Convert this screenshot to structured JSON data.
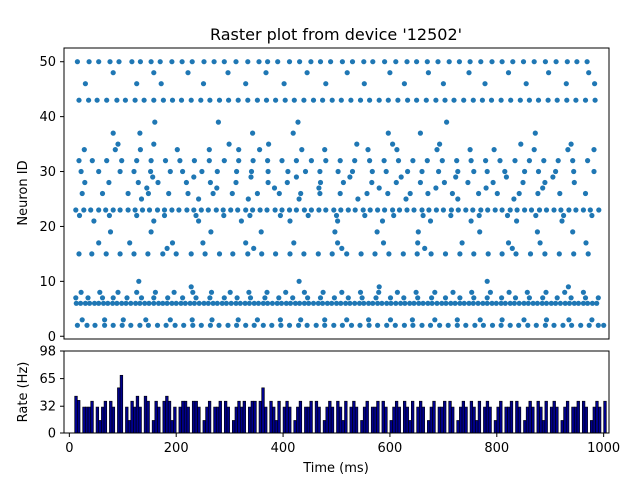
{
  "chart_data": [
    {
      "type": "scatter",
      "title": "Raster plot from device '12502'",
      "xlabel": "",
      "ylabel": "Neuron ID",
      "xlim": [
        -10,
        1010
      ],
      "ylim": [
        -0.5,
        52.5
      ],
      "yticks": [
        0,
        10,
        20,
        30,
        40,
        50
      ],
      "color": "#1f77b4",
      "neurons": [
        {
          "id": 50,
          "times": [
            15,
            37,
            55,
            76,
            93,
            117,
            133,
            153,
            170,
            192,
            211,
            230,
            252,
            271,
            290,
            312,
            334,
            355,
            371,
            390,
            412,
            431,
            452,
            470,
            489,
            511,
            530,
            551,
            568,
            590,
            611,
            632,
            650,
            670,
            690,
            711,
            730,
            750,
            770,
            791,
            810,
            830,
            850,
            870,
            891,
            911,
            932,
            950,
            969
          ]
        },
        {
          "id": 48,
          "times": [
            82,
            158,
            222,
            297,
            368,
            445,
            520,
            600,
            672,
            748,
            822,
            897,
            972
          ]
        },
        {
          "id": 46,
          "times": [
            30,
            126,
            172,
            251,
            330,
            402,
            480,
            552,
            627,
            700,
            778,
            855,
            930,
            983
          ]
        },
        {
          "id": 43,
          "times": [
            18,
            36,
            52,
            70,
            89,
            105,
            123,
            140,
            158,
            176,
            193,
            210,
            228,
            246,
            263,
            281,
            298,
            316,
            334,
            352,
            369,
            386,
            404,
            421,
            439,
            457,
            474,
            492,
            509,
            527,
            545,
            562,
            580,
            597,
            615,
            633,
            650,
            668,
            686,
            703,
            720,
            738,
            756,
            773,
            790,
            808,
            826,
            844,
            861,
            878,
            896,
            913,
            931,
            948,
            966,
            984
          ]
        },
        {
          "id": 39,
          "times": [
            160,
            279,
            428,
            706
          ]
        },
        {
          "id": 37,
          "times": [
            82,
            132,
            343,
            419,
            597,
            657,
            872
          ]
        },
        {
          "id": 35,
          "times": [
            91,
            158,
            299,
            373,
            538,
            605,
            693,
            845,
            939
          ]
        },
        {
          "id": 34,
          "times": [
            28,
            86,
            133,
            202,
            262,
            317,
            356,
            435,
            478,
            559,
            613,
            688,
            750,
            795,
            870,
            933,
            982
          ]
        },
        {
          "id": 32,
          "times": [
            18,
            43,
            70,
            98,
            126,
            153,
            180,
            207,
            234,
            262,
            290,
            317,
            344,
            371,
            398,
            425,
            453,
            480,
            507,
            534,
            562,
            589,
            616,
            643,
            670,
            698,
            725,
            752,
            779,
            806,
            834,
            861,
            888,
            915,
            942,
            970
          ]
        },
        {
          "id": 30,
          "times": [
            22,
            55,
            95,
            121,
            152,
            189,
            212,
            248,
            277,
            313,
            341,
            372,
            409,
            442,
            469,
            503,
            530,
            567,
            593,
            633,
            660,
            691,
            727,
            757,
            782,
            815,
            852,
            878,
            910,
            944,
            982
          ]
        },
        {
          "id": 29,
          "times": [
            156,
            233,
            340,
            425,
            525,
            621,
            723,
            818,
            905
          ]
        },
        {
          "id": 28,
          "times": [
            29,
            74,
            129,
            166,
            219,
            264,
            312,
            372,
            408,
            470,
            513,
            566,
            612,
            657,
            702,
            746,
            793,
            849,
            890,
            945
          ]
        },
        {
          "id": 27,
          "times": [
            145,
            276,
            384,
            467,
            580,
            686,
            780,
            886
          ]
        },
        {
          "id": 26,
          "times": [
            24,
            62,
            110,
            148,
            186,
            222,
            269,
            305,
            352,
            393,
            433,
            469,
            507,
            557,
            596,
            638,
            671,
            717,
            766,
            801,
            842,
            877,
            918,
            966
          ]
        },
        {
          "id": 25,
          "times": [
            135,
            242,
            335,
            430,
            540,
            630,
            727,
            832
          ]
        },
        {
          "id": 23,
          "times": [
            12,
            27,
            40,
            55,
            68,
            82,
            95,
            110,
            123,
            137,
            150,
            165,
            178,
            192,
            205,
            220,
            233,
            247,
            260,
            275,
            288,
            302,
            315,
            330,
            343,
            357,
            370,
            385,
            398,
            412,
            425,
            440,
            453,
            467,
            480,
            495,
            508,
            522,
            535,
            550,
            563,
            577,
            590,
            605,
            618,
            632,
            645,
            660,
            673,
            687,
            700,
            715,
            728,
            742,
            755,
            770,
            783,
            797,
            810,
            825,
            838,
            852,
            865,
            880,
            893,
            907,
            920,
            935,
            948,
            962,
            975,
            991
          ]
        },
        {
          "id": 22,
          "times": [
            19,
            75,
            126,
            178,
            237,
            289,
            338,
            395,
            447,
            500,
            553,
            607,
            662,
            714,
            767,
            820,
            873,
            925,
            978
          ]
        },
        {
          "id": 21,
          "times": [
            46,
            158,
            242,
            322,
            413,
            502,
            586,
            676,
            752,
            837,
            922
          ]
        },
        {
          "id": 19,
          "times": [
            77,
            153,
            265,
            359,
            497,
            576,
            653,
            768,
            876,
            942
          ]
        },
        {
          "id": 17,
          "times": [
            55,
            113,
            193,
            250,
            330,
            420,
            502,
            588,
            652,
            735,
            822,
            881,
            967
          ]
        },
        {
          "id": 16,
          "times": [
            183,
            345,
            510,
            665,
            829
          ]
        },
        {
          "id": 15,
          "times": [
            18,
            42,
            69,
            95,
            121,
            147,
            175,
            200,
            228,
            254,
            281,
            306,
            334,
            360,
            386,
            413,
            439,
            466,
            492,
            519,
            546,
            572,
            598,
            625,
            651,
            677,
            704,
            731,
            757,
            784,
            810,
            836,
            863,
            890,
            917,
            944,
            971
          ]
        },
        {
          "id": 10,
          "times": [
            130,
            430,
            782
          ]
        },
        {
          "id": 9,
          "times": [
            228,
            580,
            934
          ]
        },
        {
          "id": 8,
          "times": [
            22,
            57,
            91,
            126,
            161,
            196,
            231,
            266,
            301,
            336,
            370,
            405,
            440,
            475,
            510,
            545,
            579,
            614,
            649,
            684,
            718,
            753,
            788,
            823,
            857,
            892,
            927,
            962
          ]
        },
        {
          "id": 7,
          "times": [
            12,
            35,
            62,
            82,
            108,
            135,
            158,
            184,
            212,
            237,
            263,
            290,
            314,
            339,
            366,
            392,
            418,
            446,
            470,
            496,
            522,
            548,
            574,
            601,
            626,
            652,
            678,
            704,
            731,
            757,
            782,
            809,
            835,
            861,
            886,
            913,
            939,
            966,
            990
          ]
        },
        {
          "id": 6,
          "times": [
            13,
            21,
            30,
            38,
            47,
            55,
            64,
            72,
            81,
            89,
            98,
            106,
            115,
            124,
            132,
            141,
            149,
            158,
            167,
            175,
            183,
            192,
            200,
            209,
            217,
            226,
            234,
            243,
            252,
            260,
            269,
            277,
            286,
            294,
            303,
            312,
            320,
            329,
            337,
            346,
            354,
            363,
            371,
            380,
            389,
            397,
            406,
            414,
            423,
            431,
            440,
            448,
            457,
            466,
            474,
            483,
            491,
            500,
            508,
            517,
            525,
            534,
            543,
            551,
            560,
            568,
            577,
            585,
            594,
            602,
            611,
            620,
            628,
            637,
            645,
            654,
            662,
            671,
            679,
            688,
            697,
            705,
            714,
            722,
            731,
            739,
            748,
            756,
            765,
            774,
            782,
            791,
            799,
            808,
            816,
            825,
            833,
            842,
            851,
            859,
            868,
            876,
            885,
            893,
            902,
            910,
            919,
            928,
            936,
            945,
            953,
            962,
            970,
            979,
            987
          ]
        },
        {
          "id": 3,
          "times": [
            24,
            66,
            101,
            143,
            189,
            230,
            267,
            316,
            352,
            395,
            433,
            478,
            519,
            560,
            601,
            642,
            684,
            726,
            769,
            810,
            851,
            893,
            935,
            978
          ]
        },
        {
          "id": 2,
          "times": [
            15,
            33,
            48,
            66,
            82,
            99,
            115,
            132,
            148,
            165,
            181,
            198,
            214,
            231,
            247,
            264,
            280,
            297,
            313,
            330,
            346,
            363,
            379,
            396,
            412,
            429,
            445,
            462,
            478,
            495,
            511,
            528,
            544,
            561,
            577,
            594,
            610,
            627,
            643,
            660,
            676,
            693,
            709,
            726,
            742,
            759,
            775,
            792,
            808,
            825,
            841,
            858,
            874,
            891,
            907,
            924,
            940,
            957,
            973,
            990,
            1000
          ]
        }
      ]
    },
    {
      "type": "bar",
      "title": "",
      "xlabel": "Time (ms)",
      "ylabel": "Rate (Hz)",
      "xlim": [
        -10,
        1010
      ],
      "ylim": [
        0,
        98
      ],
      "yticks": [
        0,
        32,
        65,
        98
      ],
      "xticks": [
        0,
        200,
        400,
        600,
        800,
        1000
      ],
      "bin_width": 5,
      "bin_start": 10,
      "color": "#00008b",
      "values": [
        44,
        39,
        0,
        31,
        31,
        31,
        38,
        0,
        31,
        15,
        31,
        38,
        0,
        38,
        31,
        0,
        54,
        69,
        0,
        31,
        15,
        38,
        31,
        44,
        31,
        0,
        44,
        38,
        0,
        15,
        38,
        31,
        0,
        38,
        44,
        38,
        15,
        31,
        0,
        31,
        38,
        38,
        31,
        0,
        38,
        38,
        31,
        0,
        15,
        31,
        38,
        0,
        31,
        31,
        38,
        0,
        38,
        31,
        0,
        15,
        31,
        38,
        31,
        38,
        0,
        31,
        38,
        38,
        0,
        38,
        54,
        31,
        0,
        38,
        31,
        15,
        38,
        0,
        31,
        38,
        31,
        0,
        15,
        31,
        38,
        0,
        31,
        31,
        38,
        0,
        38,
        31,
        0,
        15,
        31,
        38,
        31,
        0,
        38,
        31,
        15,
        38,
        0,
        31,
        38,
        31,
        0,
        15,
        31,
        38,
        0,
        31,
        31,
        38,
        0,
        38,
        31,
        0,
        15,
        31,
        38,
        31,
        0,
        38,
        31,
        15,
        38,
        0,
        31,
        38,
        31,
        0,
        15,
        31,
        38,
        0,
        31,
        31,
        38,
        0,
        38,
        31,
        0,
        15,
        31,
        38,
        31,
        0,
        38,
        31,
        15,
        38,
        0,
        31,
        38,
        31,
        0,
        15,
        31,
        38,
        0,
        31,
        31,
        38,
        0,
        38,
        31,
        0,
        15,
        31,
        38,
        31,
        0,
        38,
        31,
        15,
        38,
        0,
        31,
        38,
        31,
        0,
        15,
        31,
        38,
        0,
        31,
        31,
        38,
        0,
        38,
        31,
        0,
        15,
        31,
        38,
        31,
        0,
        38
      ]
    }
  ]
}
